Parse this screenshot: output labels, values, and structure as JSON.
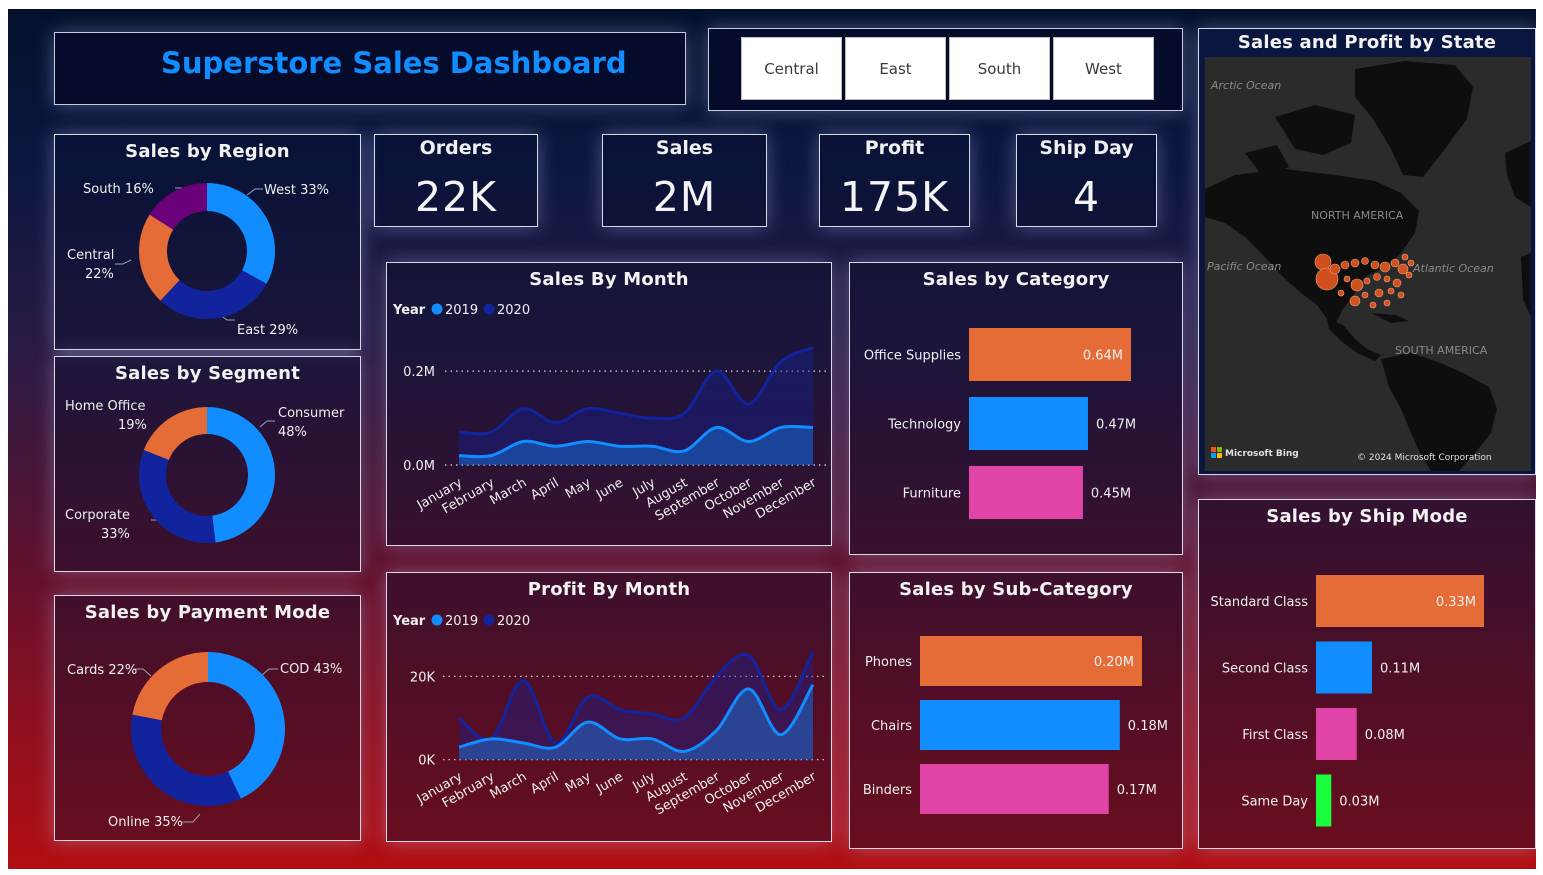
{
  "dashboard": {
    "title": "Superstore Sales Dashboard"
  },
  "slicer": {
    "options": [
      "Central",
      "East",
      "South",
      "West"
    ]
  },
  "kpis": [
    {
      "title": "Orders",
      "value": "22K"
    },
    {
      "title": "Sales",
      "value": "2M"
    },
    {
      "title": "Profit",
      "value": "175K"
    },
    {
      "title": "Ship Day",
      "value": "4"
    }
  ],
  "colors": {
    "blue": "#118dff",
    "navy": "#12239e",
    "orange": "#e66c37",
    "purple": "#6b007b",
    "pink": "#e044a7",
    "green": "#1aff3c"
  },
  "map": {
    "title": "Sales and Profit by State",
    "labels": {
      "arctic": "Arctic Ocean",
      "pacific": "Pacific Ocean",
      "atlantic": "Atlantic Ocean",
      "north_america": "NORTH AMERICA",
      "south_america": "SOUTH AMERICA"
    },
    "bing": "Microsoft Bing",
    "copyright": "© 2024 Microsoft Corporation"
  },
  "chart_data": [
    {
      "id": "region",
      "type": "pie",
      "title": "Sales by Region",
      "slices": [
        {
          "label": "West",
          "pct": "33%",
          "value": 33,
          "color": "#118dff"
        },
        {
          "label": "East",
          "pct": "29%",
          "value": 29,
          "color": "#12239e"
        },
        {
          "label": "Central",
          "pct": "22%",
          "value": 22,
          "color": "#e66c37"
        },
        {
          "label": "South",
          "pct": "16%",
          "value": 16,
          "color": "#6b007b"
        }
      ]
    },
    {
      "id": "segment",
      "type": "pie",
      "title": "Sales by Segment",
      "slices": [
        {
          "label": "Consumer",
          "pct": "48%",
          "value": 48,
          "color": "#118dff"
        },
        {
          "label": "Corporate",
          "pct": "33%",
          "value": 33,
          "color": "#12239e"
        },
        {
          "label": "Home Office",
          "pct": "19%",
          "value": 19,
          "color": "#e66c37"
        }
      ]
    },
    {
      "id": "payment",
      "type": "pie",
      "title": "Sales by Payment Mode",
      "slices": [
        {
          "label": "COD",
          "pct": "43%",
          "value": 43,
          "color": "#118dff"
        },
        {
          "label": "Online",
          "pct": "35%",
          "value": 35,
          "color": "#12239e"
        },
        {
          "label": "Cards",
          "pct": "22%",
          "value": 22,
          "color": "#e66c37"
        }
      ]
    },
    {
      "id": "salesMonth",
      "type": "area",
      "title": "Sales By Month",
      "legend_title": "Year",
      "categories": [
        "January",
        "February",
        "March",
        "April",
        "May",
        "June",
        "July",
        "August",
        "September",
        "October",
        "November",
        "December"
      ],
      "ticks": [
        "0.2M",
        "0.0M"
      ],
      "tick_values": [
        0.2,
        0
      ],
      "ylim": [
        0,
        0.26
      ],
      "series": [
        {
          "name": "2019",
          "color": "#118dff",
          "values": [
            0.02,
            0.02,
            0.05,
            0.04,
            0.05,
            0.04,
            0.04,
            0.03,
            0.08,
            0.05,
            0.08,
            0.08
          ]
        },
        {
          "name": "2020",
          "color": "#12239e",
          "values": [
            0.07,
            0.07,
            0.12,
            0.09,
            0.12,
            0.11,
            0.1,
            0.11,
            0.2,
            0.13,
            0.22,
            0.25
          ]
        }
      ]
    },
    {
      "id": "profitMonth",
      "type": "area",
      "title": "Profit By Month",
      "legend_title": "Year",
      "categories": [
        "January",
        "February",
        "March",
        "April",
        "May",
        "June",
        "July",
        "August",
        "September",
        "October",
        "November",
        "December"
      ],
      "ticks": [
        "20K",
        "0K"
      ],
      "tick_values": [
        20000,
        0
      ],
      "ylim": [
        -2000,
        28000
      ],
      "series": [
        {
          "name": "2019",
          "color": "#118dff",
          "values": [
            3000,
            5000,
            4000,
            3000,
            9000,
            5000,
            5000,
            2000,
            7000,
            17000,
            6000,
            18000
          ]
        },
        {
          "name": "2020",
          "color": "#12239e",
          "values": [
            10000,
            5000,
            19000,
            4000,
            15000,
            12000,
            11000,
            10000,
            20000,
            25000,
            12000,
            26000
          ]
        }
      ]
    },
    {
      "id": "category",
      "type": "bar",
      "title": "Sales by Category",
      "categories": [
        "Office Supplies",
        "Technology",
        "Furniture"
      ],
      "values": [
        0.64,
        0.47,
        0.45
      ],
      "labels": [
        "0.64M",
        "0.47M",
        "0.45M"
      ],
      "colors": [
        "#e66c37",
        "#118dff",
        "#e044a7"
      ]
    },
    {
      "id": "subcategory",
      "type": "bar",
      "title": "Sales by Sub-Category",
      "categories": [
        "Phones",
        "Chairs",
        "Binders"
      ],
      "values": [
        0.2,
        0.18,
        0.17
      ],
      "labels": [
        "0.20M",
        "0.18M",
        "0.17M"
      ],
      "colors": [
        "#e66c37",
        "#118dff",
        "#e044a7"
      ]
    },
    {
      "id": "shipmode",
      "type": "bar",
      "title": "Sales by Ship Mode",
      "categories": [
        "Standard Class",
        "Second Class",
        "First Class",
        "Same Day"
      ],
      "values": [
        0.33,
        0.11,
        0.08,
        0.03
      ],
      "labels": [
        "0.33M",
        "0.11M",
        "0.08M",
        "0.03M"
      ],
      "colors": [
        "#e66c37",
        "#118dff",
        "#e044a7",
        "#1aff3c"
      ]
    }
  ]
}
